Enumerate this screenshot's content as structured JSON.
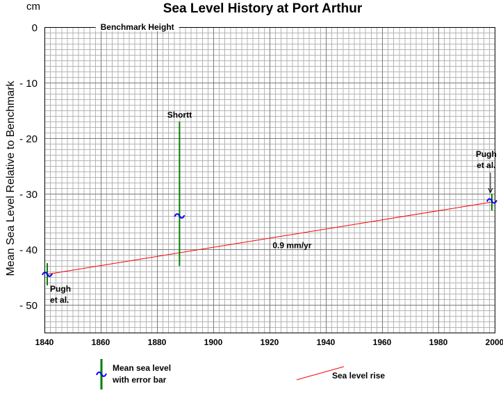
{
  "chart_data": {
    "type": "scatter",
    "title": "Sea Level History at Port Arthur",
    "ylabel": "Mean Sea Level Relative to Benchmark",
    "yunit": "cm",
    "xlabel": "",
    "xlim": [
      1840,
      2000
    ],
    "ylim": [
      -55,
      0
    ],
    "xticks": [
      1840,
      1860,
      1880,
      1900,
      1920,
      1940,
      1960,
      1980,
      2000
    ],
    "xtick_labels": [
      "1840",
      "1860",
      "1880",
      "1900",
      "1920",
      "1940",
      "1960",
      "1980",
      "2000"
    ],
    "yticks": [
      0,
      -10,
      -20,
      -30,
      -40,
      -50
    ],
    "ytick_labels": [
      "0",
      "- 10",
      "- 20",
      "- 30",
      "- 40",
      "- 50"
    ],
    "grid": true,
    "reference_line": {
      "label": "Benchmark Height",
      "y": 0
    },
    "series": [
      {
        "name": "Mean sea level with error bar",
        "points": [
          {
            "x": 1841,
            "y": -44.5,
            "err_low": -46.5,
            "err_high": -42.5,
            "label": "Pugh et al."
          },
          {
            "x": 1888,
            "y": -34,
            "err_low": -43,
            "err_high": -17,
            "label": "Shortt"
          },
          {
            "x": 1999,
            "y": -31.3,
            "err_low": -33,
            "err_high": -30,
            "label": "Pugh et al."
          }
        ]
      },
      {
        "name": "Sea level rise",
        "line": [
          {
            "x": 1841,
            "y": -44.5
          },
          {
            "x": 1999,
            "y": -31.5
          }
        ],
        "label": "0.9 mm/yr"
      }
    ],
    "colors": {
      "grid_minor": "#b4b4b4",
      "grid_major": "#7a7a7a",
      "error_bar": "#007f00",
      "point": "#0000ff",
      "trend": "#ff0000"
    },
    "legend": {
      "placement": "bottom",
      "entries": [
        {
          "text_line1": "Mean sea level",
          "text_line2": "with error bar"
        },
        {
          "text_line1": "Sea level rise"
        }
      ]
    }
  }
}
